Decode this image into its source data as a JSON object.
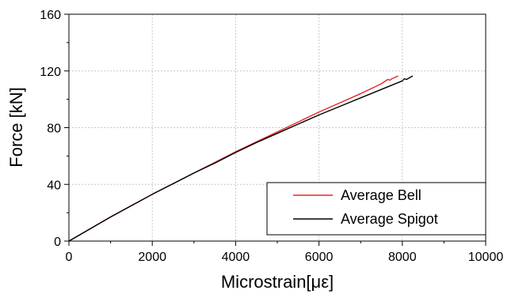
{
  "chart_data": {
    "type": "line",
    "title": "",
    "xlabel": "Microstrain[με]",
    "ylabel": "Force [kN]",
    "xlim": [
      0,
      10000
    ],
    "ylim": [
      0,
      160
    ],
    "xticks": [
      0,
      2000,
      4000,
      6000,
      8000,
      10000
    ],
    "yticks": [
      0,
      40,
      80,
      120,
      160
    ],
    "grid": true,
    "legend_position": "bottom-right",
    "series": [
      {
        "name": "Average Bell",
        "color": "#e8262b",
        "x": [
          0,
          500,
          1000,
          1500,
          2000,
          2500,
          3000,
          3500,
          4000,
          4500,
          5000,
          5500,
          6000,
          6500,
          7000,
          7500,
          7650,
          7700,
          7750,
          7900
        ],
        "y": [
          0,
          8.5,
          17,
          25,
          33,
          40.5,
          48,
          55.5,
          63,
          70,
          77,
          84,
          91,
          97.5,
          104,
          111,
          114,
          113.5,
          114.5,
          116.5
        ]
      },
      {
        "name": "Average Spigot",
        "color": "#000000",
        "x": [
          0,
          500,
          1000,
          1500,
          2000,
          2500,
          3000,
          3500,
          4000,
          4500,
          5000,
          5500,
          6000,
          6500,
          7000,
          7500,
          8000,
          8050,
          8100,
          8250
        ],
        "y": [
          0,
          8.5,
          17,
          25,
          33,
          40.5,
          48,
          55,
          62.5,
          69.5,
          76,
          82.5,
          89,
          95,
          101,
          107,
          113,
          114.5,
          114,
          116.5
        ]
      }
    ]
  }
}
